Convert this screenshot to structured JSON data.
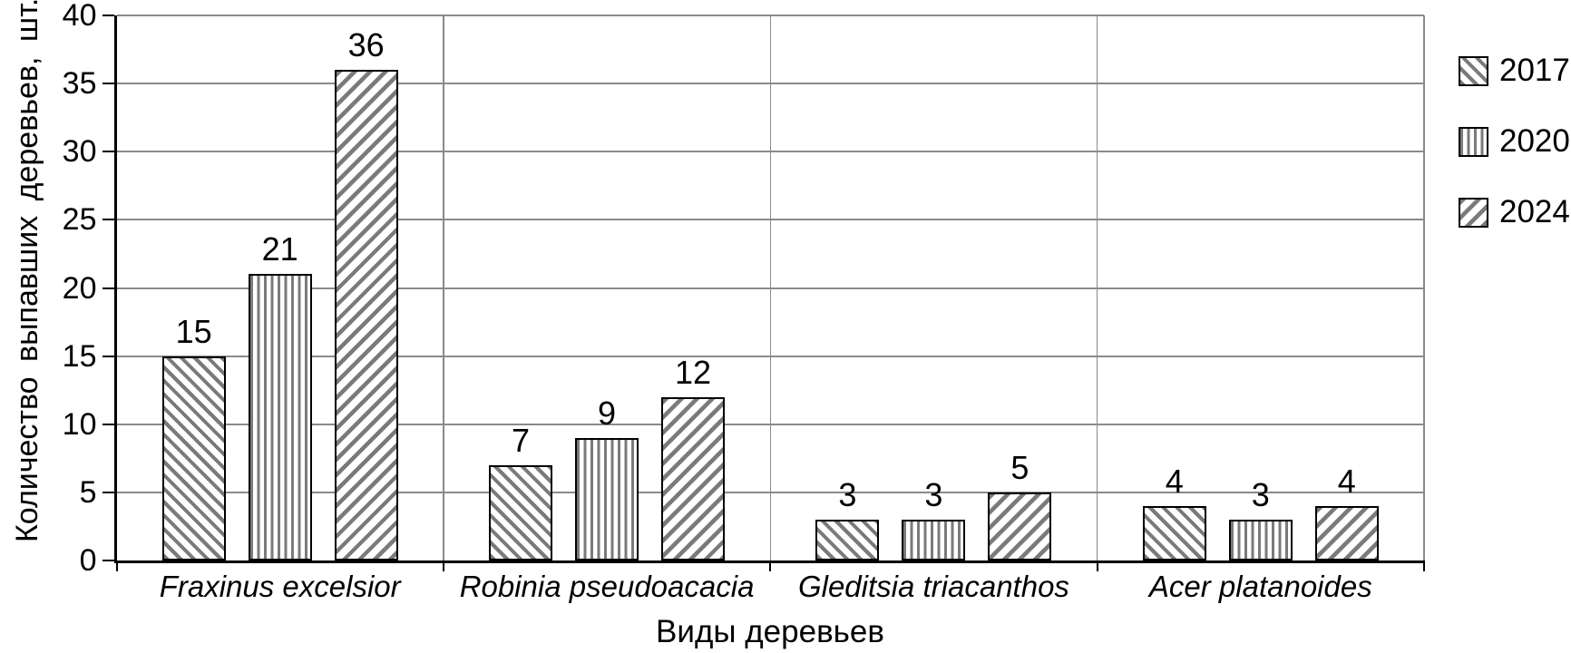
{
  "chart_data": {
    "type": "bar",
    "title": "",
    "categories": [
      "Fraxinus excelsior",
      "Robinia pseudoacacia",
      "Gleditsia triacanthos",
      "Acer platanoides"
    ],
    "series": [
      {
        "name": "2017",
        "pattern": "diagonal-up",
        "values": [
          15,
          7,
          3,
          4
        ]
      },
      {
        "name": "2020",
        "pattern": "vertical",
        "values": [
          21,
          9,
          3,
          3
        ]
      },
      {
        "name": "2024",
        "pattern": "diagonal-down",
        "values": [
          36,
          12,
          5,
          4
        ]
      }
    ],
    "xlabel": "Виды деревьев",
    "ylabel": "Количество выпавших деревьев, шт.",
    "ylim": [
      0,
      40
    ],
    "ytick_step": 5,
    "ytick_labels": [
      "0",
      "5",
      "10",
      "15",
      "20",
      "25",
      "30",
      "35",
      "40"
    ],
    "grid": true,
    "legend_position": "right",
    "category_label_style": "italic",
    "colors": {
      "hatch": "#7a7a7a",
      "bar_border": "#000000",
      "gridline": "#8a8a8a",
      "axis": "#000000",
      "text": "#000000",
      "background": "#ffffff"
    }
  }
}
